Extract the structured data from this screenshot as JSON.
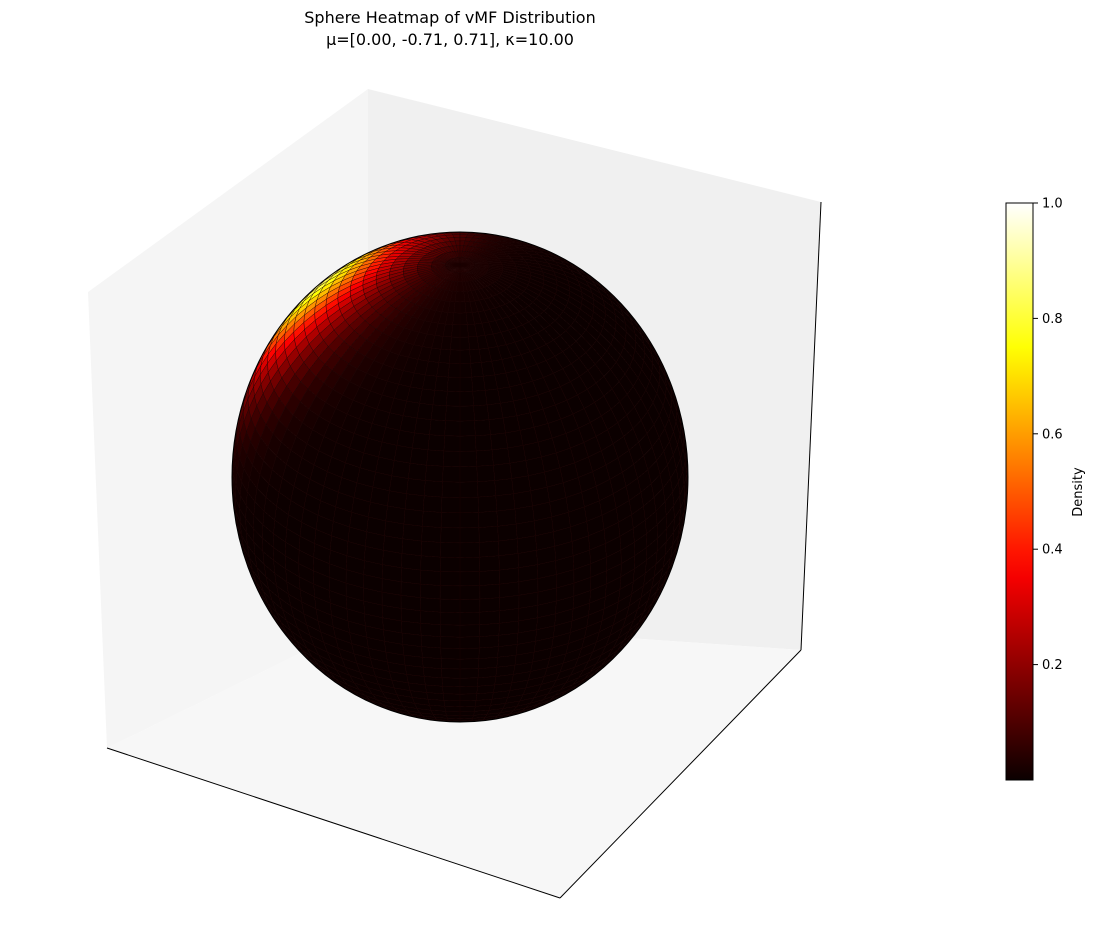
{
  "chart_data": {
    "type": "heatmap",
    "subtype": "3d-sphere-surface",
    "title_lines": [
      "Sphere Heatmap of vMF Distribution",
      "μ=[0.00, -0.71, 0.71], κ=10.00"
    ],
    "distribution": {
      "name": "vMF",
      "mu": [
        0.0,
        -0.71,
        0.71
      ],
      "kappa": 10.0
    },
    "colormap": "hot",
    "colorbar": {
      "label": "Density",
      "range": [
        0.0,
        1.0
      ],
      "ticks": [
        0.2,
        0.4,
        0.6,
        0.8,
        1.0
      ],
      "tick_labels": [
        "0.2",
        "0.4",
        "0.6",
        "0.8",
        "1.0"
      ]
    },
    "axes_3d": {
      "tick_labels_visible": false,
      "grid": false,
      "pane_colors": [
        "#f5f5f5",
        "#f2f2f2",
        "#f7f7f7"
      ]
    }
  }
}
